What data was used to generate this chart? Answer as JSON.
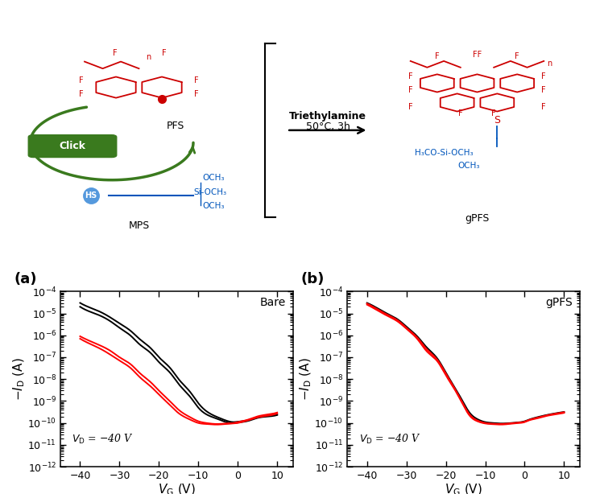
{
  "fig_width": 7.5,
  "fig_height": 6.14,
  "bg_color": "#ffffff",
  "top_elements": {
    "arrow_text1": "Triethylamine",
    "arrow_text2": "50°C, 3h",
    "pfs_label": "PFS",
    "mps_label": "MPS",
    "gpfs_label": "gPFS",
    "click_text": "Click",
    "click_color": "#3a7a1e",
    "vd_text": "$V_D$ = -40 V"
  },
  "plot_a": {
    "label": "(a)",
    "title": "Bare",
    "xlabel": "$V_{\\mathrm{G}}$ (V)",
    "ylabel": "$-I_{\\mathrm{D}}$ (A)",
    "vd_label": "$V_{\\mathrm{D}}$ = −40 V",
    "xlim": [
      -45,
      14
    ],
    "ylim_log": [
      -12,
      -4
    ],
    "xticks": [
      -40,
      -30,
      -20,
      -10,
      0,
      10
    ],
    "black_curves": [
      {
        "x": [
          -40,
          -38,
          -35,
          -32,
          -30,
          -27,
          -25,
          -22,
          -20,
          -17,
          -15,
          -12,
          -10,
          -8,
          -5,
          -3,
          -1,
          0,
          1,
          3,
          5,
          8,
          10
        ],
        "y": [
          3e-05,
          2e-05,
          1.2e-05,
          6e-06,
          3.5e-06,
          1.5e-06,
          7e-07,
          2.5e-07,
          1e-07,
          3e-08,
          1e-08,
          2.5e-09,
          8e-10,
          3.5e-10,
          1.8e-10,
          1.3e-10,
          1.1e-10,
          1.15e-10,
          1.2e-10,
          1.4e-10,
          1.8e-10,
          2.2e-10,
          2.5e-10
        ]
      },
      {
        "x": [
          -40,
          -38,
          -35,
          -32,
          -30,
          -27,
          -25,
          -22,
          -20,
          -17,
          -15,
          -12,
          -10,
          -8,
          -5,
          -3,
          -1,
          0,
          1,
          3,
          5,
          8,
          10
        ],
        "y": [
          2e-05,
          1.3e-05,
          8e-06,
          4e-06,
          2.2e-06,
          9e-07,
          4e-07,
          1.5e-07,
          6e-08,
          1.8e-08,
          6e-09,
          1.5e-09,
          5e-10,
          2.5e-10,
          1.5e-10,
          1.1e-10,
          1e-10,
          1.05e-10,
          1.1e-10,
          1.3e-10,
          1.7e-10,
          2e-10,
          2.3e-10
        ]
      }
    ],
    "red_curves": [
      {
        "x": [
          -40,
          -38,
          -35,
          -32,
          -30,
          -27,
          -25,
          -22,
          -20,
          -17,
          -15,
          -12,
          -10,
          -8,
          -5,
          -3,
          -1,
          0,
          1,
          3,
          5,
          8,
          10
        ],
        "y": [
          9e-07,
          6e-07,
          3.5e-07,
          1.8e-07,
          1e-07,
          4.5e-08,
          2e-08,
          7e-09,
          3e-09,
          9e-10,
          4e-10,
          1.8e-10,
          1.2e-10,
          1e-10,
          9e-11,
          9.5e-11,
          1e-10,
          1.1e-10,
          1.2e-10,
          1.5e-10,
          2e-10,
          2.5e-10,
          3e-10
        ]
      },
      {
        "x": [
          -40,
          -38,
          -35,
          -32,
          -30,
          -27,
          -25,
          -22,
          -20,
          -17,
          -15,
          -12,
          -10,
          -8,
          -5,
          -3,
          -1,
          0,
          1,
          3,
          5,
          8,
          10
        ],
        "y": [
          7e-07,
          4.5e-07,
          2.5e-07,
          1.2e-07,
          7e-08,
          3e-08,
          1.3e-08,
          4.5e-09,
          2e-09,
          6e-10,
          2.8e-10,
          1.4e-10,
          1e-10,
          9e-11,
          8.5e-11,
          9e-11,
          9.5e-11,
          1e-10,
          1.1e-10,
          1.4e-10,
          1.8e-10,
          2.2e-10,
          2.7e-10
        ]
      }
    ]
  },
  "plot_b": {
    "label": "(b)",
    "title": "gPFS",
    "xlabel": "$V_{\\mathrm{G}}$ (V)",
    "ylabel": "$-I_{\\mathrm{D}}$ (A)",
    "vd_label": "$V_{\\mathrm{D}}$ = −40 V",
    "xlim": [
      -45,
      14
    ],
    "ylim_log": [
      -12,
      -4
    ],
    "xticks": [
      -40,
      -30,
      -20,
      -10,
      0,
      10
    ],
    "black_curves": [
      {
        "x": [
          -40,
          -38,
          -35,
          -32,
          -30,
          -27,
          -25,
          -22,
          -20,
          -18,
          -16,
          -14,
          -12,
          -10,
          -8,
          -6,
          -4,
          -2,
          0,
          1,
          3,
          5,
          8,
          10
        ],
        "y": [
          3e-05,
          2e-05,
          1e-05,
          5e-06,
          2.5e-06,
          8e-07,
          3e-07,
          8e-08,
          2e-08,
          5e-09,
          1.2e-09,
          3e-10,
          1.5e-10,
          1.1e-10,
          1e-10,
          9.5e-11,
          9.8e-11,
          1.05e-10,
          1.2e-10,
          1.4e-10,
          1.8e-10,
          2.2e-10,
          2.8e-10,
          3.2e-10
        ]
      }
    ],
    "red_curves": [
      {
        "x": [
          -40,
          -38,
          -35,
          -32,
          -30,
          -27,
          -25,
          -22,
          -20,
          -18,
          -16,
          -14,
          -12,
          -10,
          -8,
          -6,
          -4,
          -2,
          0,
          1,
          3,
          5,
          8,
          10
        ],
        "y": [
          2.8e-05,
          1.8e-05,
          9e-06,
          4.5e-06,
          2.2e-06,
          7e-07,
          2.5e-07,
          7e-08,
          1.8e-08,
          4.5e-09,
          1e-09,
          2.5e-10,
          1.3e-10,
          1e-10,
          9.2e-11,
          9e-11,
          9.5e-11,
          1.02e-10,
          1.15e-10,
          1.35e-10,
          1.7e-10,
          2.1e-10,
          2.7e-10,
          3.1e-10
        ]
      },
      {
        "x": [
          -40,
          -38,
          -35,
          -32,
          -30,
          -27,
          -25,
          -22,
          -20,
          -18,
          -16,
          -14,
          -12,
          -10,
          -8,
          -6,
          -4,
          -2,
          0,
          1,
          3,
          5,
          8,
          10
        ],
        "y": [
          2.5e-05,
          1.6e-05,
          8e-06,
          4e-06,
          2e-06,
          6e-07,
          2e-07,
          6e-08,
          1.5e-08,
          4e-09,
          9e-10,
          2.2e-10,
          1.2e-10,
          9.5e-11,
          8.8e-11,
          8.5e-11,
          9e-11,
          9.8e-11,
          1.1e-10,
          1.3e-10,
          1.6e-10,
          2e-10,
          2.5e-10,
          2.9e-10
        ]
      }
    ]
  }
}
